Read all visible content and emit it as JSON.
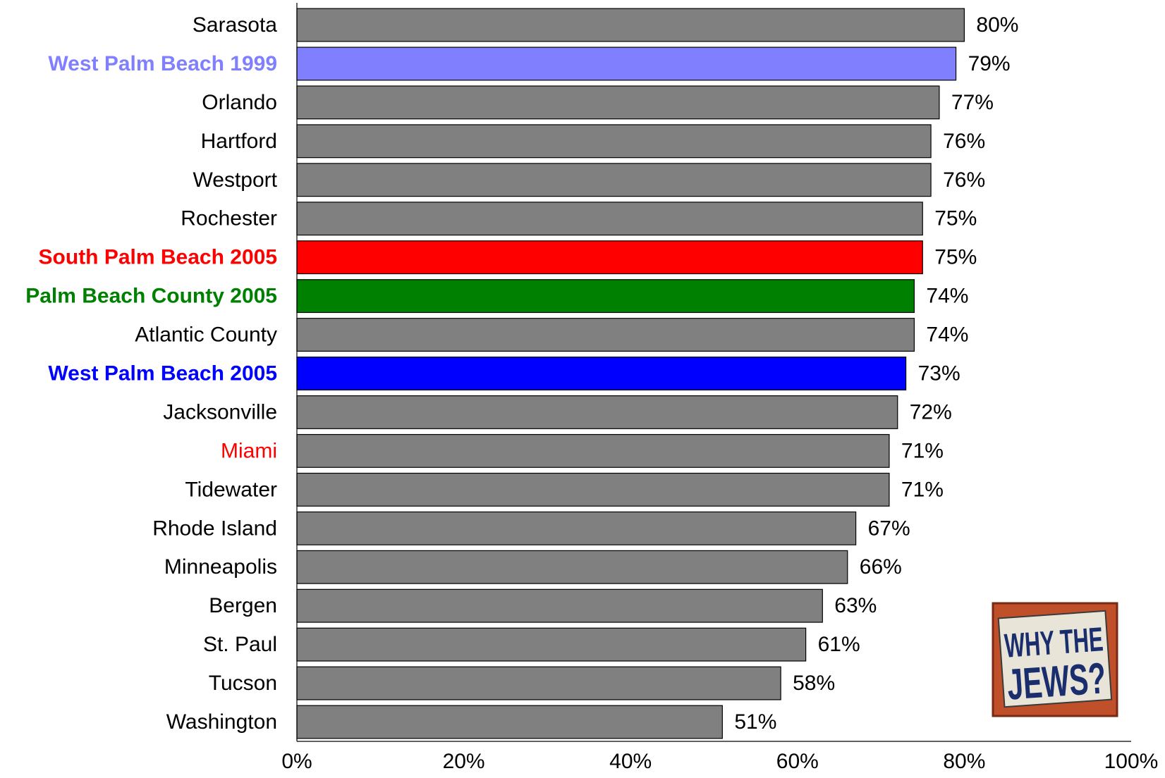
{
  "chart_data": {
    "type": "bar",
    "orientation": "horizontal",
    "categories": [
      "Sarasota",
      "West Palm Beach 1999",
      "Orlando",
      "Hartford",
      "Westport",
      "Rochester",
      "South Palm Beach 2005",
      "Palm Beach County 2005",
      "Atlantic County",
      "West Palm Beach 2005",
      "Jacksonville",
      "Miami",
      "Tidewater",
      "Rhode Island",
      "Minneapolis",
      "Bergen",
      "St. Paul",
      "Tucson",
      "Washington"
    ],
    "values": [
      80,
      79,
      77,
      76,
      76,
      75,
      75,
      74,
      74,
      73,
      72,
      71,
      71,
      67,
      66,
      63,
      61,
      58,
      51
    ],
    "value_labels": [
      "80%",
      "79%",
      "77%",
      "76%",
      "76%",
      "75%",
      "75%",
      "74%",
      "74%",
      "73%",
      "72%",
      "71%",
      "71%",
      "67%",
      "66%",
      "63%",
      "61%",
      "58%",
      "51%"
    ],
    "bar_colors": [
      "#808080",
      "#8080FF",
      "#808080",
      "#808080",
      "#808080",
      "#808080",
      "#FF0000",
      "#008000",
      "#808080",
      "#0000FF",
      "#808080",
      "#808080",
      "#808080",
      "#808080",
      "#808080",
      "#808080",
      "#808080",
      "#808080",
      "#808080"
    ],
    "label_colors": [
      "#000000",
      "#8080FF",
      "#000000",
      "#000000",
      "#000000",
      "#000000",
      "#FF0000",
      "#008000",
      "#000000",
      "#0000FF",
      "#000000",
      "#FF0000",
      "#000000",
      "#000000",
      "#000000",
      "#000000",
      "#000000",
      "#000000",
      "#000000"
    ],
    "label_bold": [
      false,
      true,
      false,
      false,
      false,
      false,
      true,
      true,
      false,
      true,
      false,
      false,
      false,
      false,
      false,
      false,
      false,
      false,
      false
    ],
    "xlim": [
      0,
      100
    ],
    "x_ticks": [
      0,
      20,
      40,
      60,
      80,
      100
    ],
    "x_tick_labels": [
      "0%",
      "20%",
      "40%",
      "60%",
      "80%",
      "100%"
    ],
    "grid": false,
    "legend": "none"
  },
  "logo": {
    "line1": "WHY THE",
    "line2": "JEWS?"
  }
}
